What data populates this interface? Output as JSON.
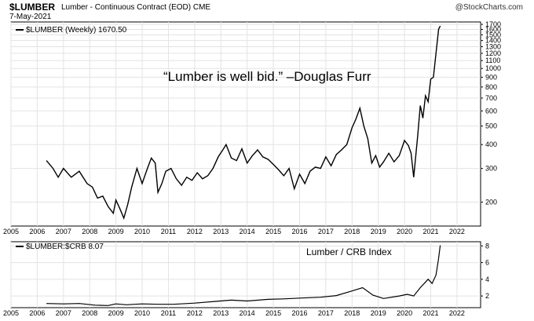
{
  "header": {
    "symbol": "$LUMBER",
    "description": "Lumber - Continuous Contract (EOD)",
    "exchange": "CME",
    "date": "7-May-2021",
    "source": "@StockCharts.com"
  },
  "chart_data": [
    {
      "type": "line",
      "title": "$LUMBER (Weekly) 1670.50",
      "annotation": "“Lumber is well bid.” –Douglas Furr",
      "y_scale": "log",
      "ylim": [
        150,
        1750
      ],
      "xlim": [
        2005.0,
        2022.9
      ],
      "yticks": [
        200,
        300,
        400,
        500,
        600,
        700,
        800,
        900,
        1000,
        1100,
        1200,
        1300,
        1400,
        1500,
        1600,
        1700
      ],
      "xticks": [
        "2005",
        "2006",
        "2007",
        "2008",
        "2009",
        "2010",
        "2011",
        "2012",
        "2013",
        "2014",
        "2015",
        "2016",
        "2017",
        "2018",
        "2019",
        "2020",
        "2021",
        "2022"
      ],
      "grid": true,
      "series": [
        {
          "name": "$LUMBER",
          "x": [
            2006.35,
            2006.6,
            2006.8,
            2007.0,
            2007.3,
            2007.6,
            2007.9,
            2008.1,
            2008.3,
            2008.5,
            2008.7,
            2008.9,
            2009.0,
            2009.15,
            2009.3,
            2009.45,
            2009.6,
            2009.8,
            2010.0,
            2010.2,
            2010.35,
            2010.5,
            2010.6,
            2010.75,
            2010.9,
            2011.1,
            2011.3,
            2011.5,
            2011.7,
            2011.9,
            2012.1,
            2012.3,
            2012.5,
            2012.7,
            2012.9,
            2013.1,
            2013.2,
            2013.4,
            2013.6,
            2013.8,
            2014.0,
            2014.2,
            2014.4,
            2014.6,
            2014.8,
            2015.0,
            2015.2,
            2015.4,
            2015.6,
            2015.8,
            2016.0,
            2016.2,
            2016.4,
            2016.6,
            2016.8,
            2017.0,
            2017.2,
            2017.4,
            2017.6,
            2017.8,
            2018.0,
            2018.15,
            2018.3,
            2018.45,
            2018.6,
            2018.75,
            2018.9,
            2019.05,
            2019.2,
            2019.4,
            2019.6,
            2019.8,
            2020.0,
            2020.15,
            2020.25,
            2020.35,
            2020.5,
            2020.6,
            2020.7,
            2020.8,
            2020.9,
            2021.0,
            2021.1,
            2021.2,
            2021.3,
            2021.36
          ],
          "y": [
            330,
            300,
            270,
            300,
            270,
            290,
            250,
            240,
            210,
            215,
            190,
            175,
            205,
            185,
            165,
            195,
            240,
            300,
            250,
            300,
            340,
            320,
            225,
            250,
            290,
            300,
            265,
            245,
            270,
            260,
            285,
            265,
            275,
            300,
            345,
            380,
            400,
            340,
            330,
            380,
            320,
            350,
            375,
            345,
            335,
            315,
            295,
            275,
            300,
            235,
            280,
            250,
            290,
            305,
            300,
            345,
            310,
            355,
            375,
            400,
            490,
            545,
            620,
            500,
            430,
            320,
            350,
            305,
            325,
            360,
            325,
            350,
            420,
            395,
            360,
            270,
            440,
            640,
            550,
            720,
            670,
            880,
            900,
            1200,
            1600,
            1670
          ]
        }
      ]
    },
    {
      "type": "line",
      "title": "$LUMBER:$CRB 8.07",
      "annotation": "Lumber / CRB Index",
      "ylim": [
        0.6,
        8.5
      ],
      "xlim": [
        2005.0,
        2022.9
      ],
      "yticks": [
        2,
        4,
        6,
        8
      ],
      "xticks": [
        "2005",
        "2006",
        "2007",
        "2008",
        "2009",
        "2010",
        "2011",
        "2012",
        "2013",
        "2014",
        "2015",
        "2016",
        "2017",
        "2018",
        "2019",
        "2020",
        "2021",
        "2022"
      ],
      "grid": true,
      "series": [
        {
          "name": "$LUMBER:$CRB",
          "x": [
            2006.35,
            2007.0,
            2007.6,
            2008.2,
            2008.7,
            2009.0,
            2009.4,
            2010.0,
            2010.6,
            2011.2,
            2012.0,
            2012.8,
            2013.4,
            2014.0,
            2014.8,
            2015.4,
            2016.0,
            2016.8,
            2017.4,
            2018.0,
            2018.4,
            2018.8,
            2019.2,
            2019.8,
            2020.1,
            2020.35,
            2020.6,
            2020.9,
            2021.05,
            2021.2,
            2021.3,
            2021.36
          ],
          "y": [
            1.1,
            1.05,
            1.1,
            0.9,
            0.85,
            1.05,
            0.95,
            1.05,
            1.0,
            1.0,
            1.15,
            1.35,
            1.5,
            1.4,
            1.6,
            1.65,
            1.75,
            1.85,
            2.05,
            2.6,
            3.0,
            2.1,
            1.7,
            2.0,
            2.2,
            2.0,
            3.0,
            4.0,
            3.5,
            4.5,
            6.5,
            8.07
          ]
        }
      ]
    }
  ]
}
